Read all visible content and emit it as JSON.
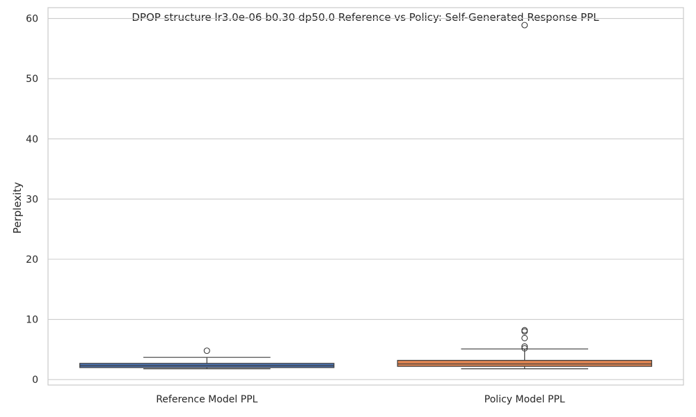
{
  "chart_data": {
    "type": "box",
    "title": "DPOP structure lr3.0e-06 b0.30 dp50.0 Reference vs Policy: Self-Generated Response PPL",
    "xlabel": "",
    "ylabel": "Perplexity",
    "ylim": [
      -0.9,
      61.8
    ],
    "yticks": [
      0,
      10,
      20,
      30,
      40,
      50,
      60
    ],
    "grid": true,
    "legend": "none",
    "categories": [
      "Reference Model PPL",
      "Policy Model PPL"
    ],
    "boxes": [
      {
        "category": "Reference Model PPL",
        "whisker_low": 1.8,
        "q1": 2.0,
        "median": 2.3,
        "q3": 2.7,
        "whisker_high": 3.7,
        "outliers": [
          4.8
        ],
        "color": "#4c72b0"
      },
      {
        "category": "Policy Model PPL",
        "whisker_low": 1.8,
        "q1": 2.2,
        "median": 2.6,
        "q3": 3.2,
        "whisker_high": 5.1,
        "outliers": [
          5.2,
          5.5,
          6.9,
          8.0,
          8.2,
          58.9
        ],
        "color": "#dd8452"
      }
    ]
  }
}
